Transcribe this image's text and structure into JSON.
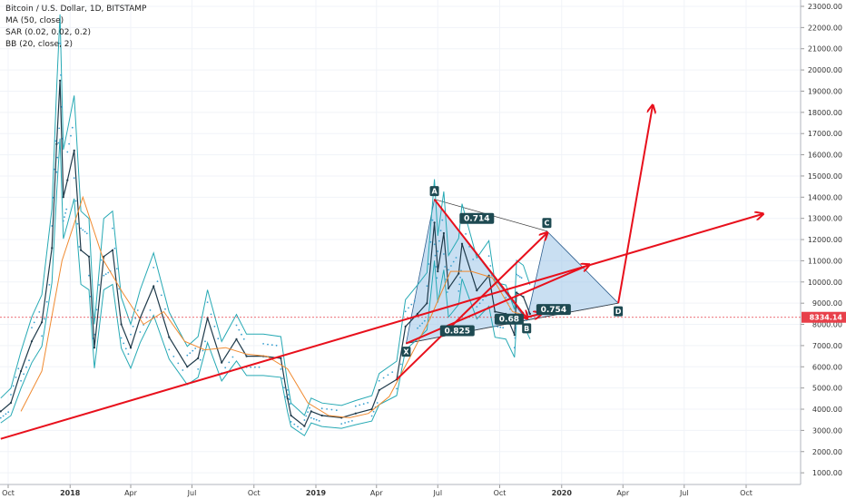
{
  "header": {
    "title": "Bitcoin / U.S. Dollar, 1D, BITSTAMP",
    "indicators": [
      "MA (50, close)",
      "SAR (0.02, 0.02, 0.2)",
      "BB (20, close, 2)"
    ]
  },
  "chart_data": {
    "type": "line",
    "title": "Bitcoin / U.S. Dollar, 1D, BITSTAMP",
    "xlabel": "",
    "ylabel": "",
    "x_ticks": [
      "Oct",
      "2018",
      "Apr",
      "Jul",
      "Oct",
      "2019",
      "Apr",
      "Jul",
      "Oct",
      "2020",
      "Apr",
      "Jul",
      "Oct"
    ],
    "y_ticks": [
      1000,
      2000,
      3000,
      4000,
      5000,
      6000,
      7000,
      8000,
      9000,
      10000,
      11000,
      12000,
      13000,
      14000,
      15000,
      16000,
      17000,
      18000,
      19000,
      20000,
      21000,
      22000,
      23000
    ],
    "y_tick_labels": [
      "1000.00",
      "2000.00",
      "3000.00",
      "4000.00",
      "5000.00",
      "6000.00",
      "7000.00",
      "8000.00",
      "9000.00",
      "10000.00",
      "11000.00",
      "12000.00",
      "13000.00",
      "14000.00",
      "15000.00",
      "16000.00",
      "17000.00",
      "18000.00",
      "19000.00",
      "20000.00",
      "21000.00",
      "22000.00",
      "23000.00"
    ],
    "ylim": [
      400,
      23300
    ],
    "current_price": 8334.14,
    "current_price_label": "8334.14",
    "colors": {
      "price": "#1f3a4a",
      "ma": "#f08a30",
      "bb": "#26a9b4",
      "sar": "#3aa0d0",
      "arrows": "#e8101c",
      "pattern_fill": "#9cc4e8",
      "pattern_edge": "#2f5f8f",
      "label_bg": "#1e4a52",
      "price_label_bg": "#e8404a"
    },
    "series": [
      {
        "name": "BTC/USD",
        "points": [
          [
            "2017-09-20",
            3900
          ],
          [
            "2017-10-05",
            4300
          ],
          [
            "2017-10-20",
            5800
          ],
          [
            "2017-11-05",
            7200
          ],
          [
            "2017-11-20",
            8100
          ],
          [
            "2017-12-05",
            11600
          ],
          [
            "2017-12-12",
            16500
          ],
          [
            "2017-12-17",
            19500
          ],
          [
            "2017-12-22",
            14000
          ],
          [
            "2017-12-28",
            14800
          ],
          [
            "2018-01-07",
            16200
          ],
          [
            "2018-01-17",
            11500
          ],
          [
            "2018-01-29",
            11200
          ],
          [
            "2018-02-06",
            6900
          ],
          [
            "2018-02-20",
            11200
          ],
          [
            "2018-03-05",
            11500
          ],
          [
            "2018-03-18",
            8000
          ],
          [
            "2018-04-01",
            6900
          ],
          [
            "2018-04-15",
            8300
          ],
          [
            "2018-05-05",
            9800
          ],
          [
            "2018-05-28",
            7400
          ],
          [
            "2018-06-24",
            6000
          ],
          [
            "2018-07-10",
            6400
          ],
          [
            "2018-07-24",
            8300
          ],
          [
            "2018-08-14",
            6200
          ],
          [
            "2018-09-05",
            7300
          ],
          [
            "2018-09-20",
            6500
          ],
          [
            "2018-10-15",
            6500
          ],
          [
            "2018-11-10",
            6400
          ],
          [
            "2018-11-20",
            4500
          ],
          [
            "2018-11-25",
            3700
          ],
          [
            "2018-12-15",
            3200
          ],
          [
            "2018-12-25",
            3900
          ],
          [
            "2019-01-10",
            3700
          ],
          [
            "2019-02-08",
            3600
          ],
          [
            "2019-03-01",
            3800
          ],
          [
            "2019-03-25",
            4000
          ],
          [
            "2019-04-05",
            4900
          ],
          [
            "2019-05-01",
            5400
          ],
          [
            "2019-05-14",
            7900
          ],
          [
            "2019-06-01",
            8500
          ],
          [
            "2019-06-15",
            9000
          ],
          [
            "2019-06-26",
            12800
          ],
          [
            "2019-07-01",
            10500
          ],
          [
            "2019-07-10",
            12300
          ],
          [
            "2019-07-17",
            9700
          ],
          [
            "2019-08-01",
            10400
          ],
          [
            "2019-08-06",
            11800
          ],
          [
            "2019-08-28",
            9600
          ],
          [
            "2019-09-15",
            10300
          ],
          [
            "2019-09-24",
            8600
          ],
          [
            "2019-10-10",
            8500
          ],
          [
            "2019-10-23",
            7500
          ],
          [
            "2019-10-26",
            9500
          ],
          [
            "2019-11-05",
            9300
          ],
          [
            "2019-11-15",
            8500
          ]
        ]
      },
      {
        "name": "MA (50, close)",
        "points": [
          [
            "2017-10-20",
            3900
          ],
          [
            "2017-11-20",
            5800
          ],
          [
            "2017-12-20",
            11000
          ],
          [
            "2018-01-20",
            14000
          ],
          [
            "2018-02-20",
            11000
          ],
          [
            "2018-03-20",
            9500
          ],
          [
            "2018-04-20",
            8000
          ],
          [
            "2018-05-20",
            8600
          ],
          [
            "2018-06-20",
            7200
          ],
          [
            "2018-07-20",
            6800
          ],
          [
            "2018-08-20",
            6900
          ],
          [
            "2018-09-20",
            6600
          ],
          [
            "2018-10-20",
            6500
          ],
          [
            "2018-11-20",
            5900
          ],
          [
            "2018-12-20",
            4300
          ],
          [
            "2019-01-20",
            3700
          ],
          [
            "2019-02-20",
            3600
          ],
          [
            "2019-03-20",
            3800
          ],
          [
            "2019-04-20",
            4600
          ],
          [
            "2019-05-20",
            6400
          ],
          [
            "2019-06-20",
            8300
          ],
          [
            "2019-07-20",
            10500
          ],
          [
            "2019-08-20",
            10500
          ],
          [
            "2019-09-20",
            10200
          ],
          [
            "2019-10-20",
            8600
          ],
          [
            "2019-11-10",
            8400
          ]
        ]
      }
    ],
    "annotations": {
      "pattern_points": [
        {
          "label": "X",
          "date": "2019-05-15",
          "value": 7100
        },
        {
          "label": "A",
          "date": "2019-06-26",
          "value": 13900
        },
        {
          "label": "B",
          "date": "2019-11-10",
          "value": 8200
        },
        {
          "label": "C",
          "date": "2019-12-10",
          "value": 12400
        },
        {
          "label": "D",
          "date": "2020-03-25",
          "value": 9000
        }
      ],
      "ratios": [
        {
          "label": "0.714",
          "date": "2019-08-28",
          "value": 13000
        },
        {
          "label": "0.825",
          "date": "2019-07-30",
          "value": 7700
        },
        {
          "label": "0.68",
          "date": "2019-10-15",
          "value": 8250
        },
        {
          "label": "0.754",
          "date": "2019-12-20",
          "value": 8700
        }
      ],
      "arrows": [
        {
          "from": [
            "2017-09-20",
            2600
          ],
          "to": [
            "2020-10-25",
            13200
          ]
        },
        {
          "from": [
            "2019-05-01",
            5400
          ],
          "to": [
            "2019-12-10",
            12300
          ]
        },
        {
          "from": [
            "2019-05-15",
            7100
          ],
          "to": [
            "2020-02-10",
            10800
          ]
        },
        {
          "from": [
            "2019-06-26",
            13900
          ],
          "to": [
            "2019-11-10",
            8300
          ]
        },
        {
          "from": [
            "2019-11-05",
            8300
          ],
          "to": [
            "2019-12-01",
            8500
          ]
        },
        {
          "from": [
            "2020-03-25",
            9000
          ],
          "to": [
            "2020-05-15",
            18300
          ]
        }
      ]
    }
  }
}
